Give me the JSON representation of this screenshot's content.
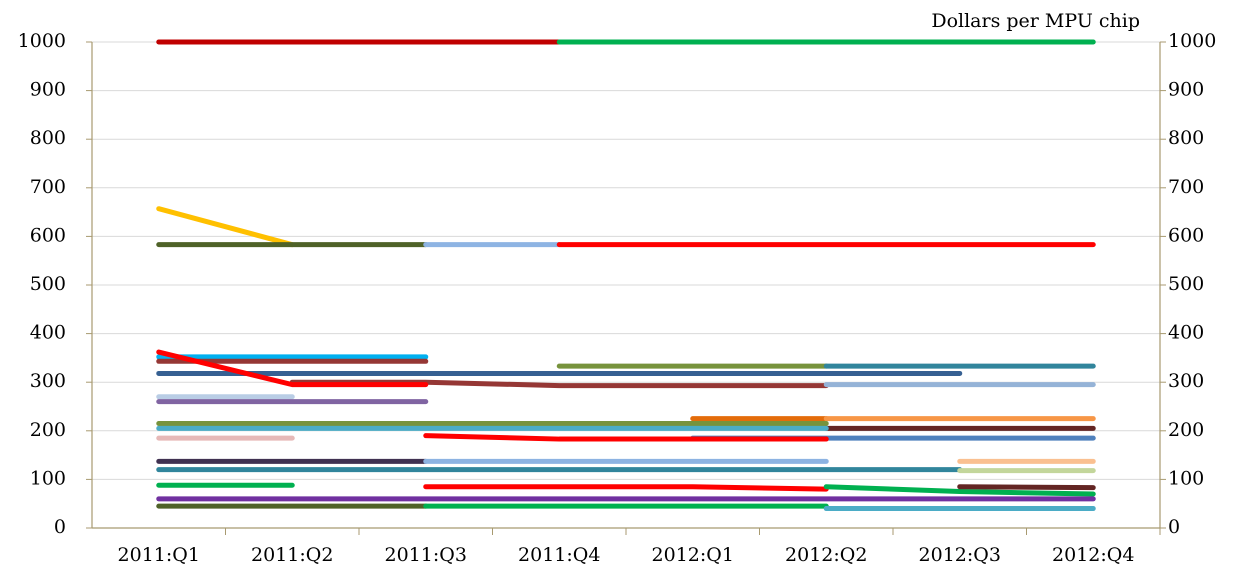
{
  "chart_data": {
    "type": "line",
    "unit_label": "Dollars per MPU chip",
    "categories": [
      "2011:Q1",
      "2011:Q2",
      "2011:Q3",
      "2011:Q4",
      "2012:Q1",
      "2012:Q2",
      "2012:Q3",
      "2012:Q4"
    ],
    "ylim": [
      0,
      1000
    ],
    "yticks": [
      0,
      100,
      200,
      300,
      400,
      500,
      600,
      700,
      800,
      900,
      1000
    ],
    "y2lim": [
      0,
      1000
    ],
    "y2ticks": [
      0,
      100,
      200,
      300,
      400,
      500,
      600,
      700,
      800,
      900,
      1000
    ],
    "grid": true,
    "series": [
      {
        "color": "#c00000",
        "values": [
          1000,
          1000,
          1000,
          1000,
          null,
          null,
          null,
          null
        ]
      },
      {
        "color": "#00b050",
        "values": [
          null,
          null,
          null,
          1000,
          1000,
          1000,
          1000,
          1000
        ]
      },
      {
        "color": "#ffc000",
        "values": [
          657,
          583,
          null,
          null,
          null,
          null,
          null,
          null
        ]
      },
      {
        "color": "#4f6228",
        "values": [
          583,
          583,
          583,
          null,
          null,
          null,
          null,
          null
        ]
      },
      {
        "color": "#8eb4e3",
        "values": [
          null,
          null,
          583,
          583,
          null,
          null,
          null,
          null
        ]
      },
      {
        "color": "#ff0000",
        "values": [
          null,
          null,
          null,
          583,
          583,
          583,
          583,
          583
        ]
      },
      {
        "color": "#00b0f0",
        "values": [
          352,
          352,
          352,
          null,
          null,
          null,
          null,
          null
        ]
      },
      {
        "color": "#953735",
        "values": [
          343,
          343,
          343,
          null,
          null,
          null,
          null,
          null
        ]
      },
      {
        "color": "#366092",
        "values": [
          318,
          318,
          318,
          318,
          318,
          318,
          318,
          null
        ]
      },
      {
        "color": "#953735",
        "values": [
          null,
          300,
          300,
          293,
          293,
          293,
          null,
          null
        ]
      },
      {
        "color": "#77933c",
        "values": [
          null,
          null,
          null,
          333,
          333,
          333,
          null,
          null
        ]
      },
      {
        "color": "#31859c",
        "values": [
          null,
          null,
          null,
          null,
          null,
          333,
          333,
          333
        ]
      },
      {
        "color": "#95b3d7",
        "values": [
          null,
          null,
          null,
          null,
          null,
          295,
          295,
          295
        ]
      },
      {
        "color": "#b9cde5",
        "values": [
          270,
          270,
          null,
          null,
          null,
          null,
          null,
          null
        ]
      },
      {
        "color": "#8064a2",
        "values": [
          260,
          260,
          260,
          null,
          null,
          null,
          null,
          null
        ]
      },
      {
        "color": "#ff0000",
        "values": [
          362,
          295,
          295,
          null,
          null,
          null,
          null,
          null
        ]
      },
      {
        "color": "#e46c0a",
        "values": [
          null,
          null,
          null,
          null,
          225,
          225,
          null,
          null
        ]
      },
      {
        "color": "#f79646",
        "values": [
          null,
          null,
          null,
          null,
          null,
          225,
          225,
          225
        ]
      },
      {
        "color": "#77933c",
        "values": [
          215,
          215,
          215,
          215,
          215,
          215,
          null,
          null
        ]
      },
      {
        "color": "#632523",
        "values": [
          null,
          null,
          null,
          null,
          null,
          205,
          205,
          205
        ]
      },
      {
        "color": "#4bacc6",
        "values": [
          205,
          205,
          205,
          205,
          205,
          205,
          null,
          null
        ]
      },
      {
        "color": "#4f81bd",
        "values": [
          null,
          null,
          null,
          null,
          185,
          185,
          185,
          185
        ]
      },
      {
        "color": "#e6b9b8",
        "values": [
          185,
          185,
          null,
          null,
          null,
          null,
          null,
          null
        ]
      },
      {
        "color": "#ff0000",
        "values": [
          null,
          null,
          190,
          183,
          183,
          183,
          null,
          null
        ]
      },
      {
        "color": "#403151",
        "values": [
          137,
          137,
          137,
          null,
          null,
          null,
          null,
          null
        ]
      },
      {
        "color": "#8db3e2",
        "values": [
          null,
          null,
          137,
          137,
          137,
          137,
          null,
          null
        ]
      },
      {
        "color": "#fac090",
        "values": [
          null,
          null,
          null,
          null,
          null,
          null,
          137,
          137
        ]
      },
      {
        "color": "#31859c",
        "values": [
          120,
          120,
          120,
          120,
          120,
          120,
          120,
          null
        ]
      },
      {
        "color": "#c3d69b",
        "values": [
          null,
          null,
          null,
          null,
          null,
          null,
          118,
          118
        ]
      },
      {
        "color": "#00b050",
        "values": [
          88,
          88,
          null,
          null,
          null,
          null,
          null,
          null
        ]
      },
      {
        "color": "#ff0000",
        "values": [
          null,
          null,
          85,
          85,
          85,
          80,
          null,
          null
        ]
      },
      {
        "color": "#00b050",
        "values": [
          null,
          null,
          null,
          null,
          null,
          85,
          75,
          70
        ]
      },
      {
        "color": "#632523",
        "values": [
          null,
          null,
          null,
          null,
          null,
          null,
          85,
          83
        ]
      },
      {
        "color": "#7030a0",
        "values": [
          60,
          60,
          60,
          60,
          60,
          60,
          60,
          60
        ]
      },
      {
        "color": "#4f6228",
        "values": [
          45,
          45,
          45,
          null,
          null,
          null,
          null,
          null
        ]
      },
      {
        "color": "#00b050",
        "values": [
          null,
          null,
          45,
          45,
          45,
          45,
          null,
          null
        ]
      },
      {
        "color": "#4bacc6",
        "values": [
          null,
          null,
          null,
          null,
          null,
          40,
          40,
          40
        ]
      }
    ]
  }
}
